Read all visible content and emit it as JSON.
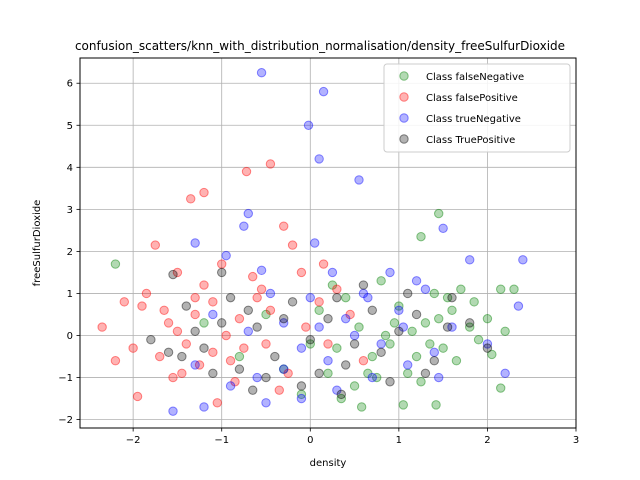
{
  "chart_data": {
    "type": "scatter",
    "title": "confusion_scatters/knn_with_distribution_normalisation/density_freeSulfurDioxide",
    "xlabel": "density",
    "ylabel": "freeSulfurDioxide",
    "xlim": [
      -2.6,
      3.0
    ],
    "ylim": [
      -2.2,
      6.6
    ],
    "xticks": [
      -2,
      -1,
      0,
      1,
      2,
      3
    ],
    "yticks": [
      -2,
      -1,
      0,
      1,
      2,
      3,
      4,
      5,
      6
    ],
    "grid": true,
    "legend_position": "top-right",
    "series": [
      {
        "name": "Class falseNegative",
        "color": "#008000",
        "points": [
          [
            -2.2,
            1.7
          ],
          [
            1.45,
            2.9
          ],
          [
            1.25,
            2.35
          ],
          [
            2.15,
            1.1
          ],
          [
            2.3,
            1.1
          ],
          [
            2.2,
            0.1
          ],
          [
            2.05,
            -0.45
          ],
          [
            2.15,
            -1.25
          ],
          [
            1.05,
            -1.65
          ],
          [
            1.42,
            -1.65
          ],
          [
            0.58,
            -1.7
          ],
          [
            0.3,
            -0.3
          ],
          [
            0.7,
            -0.5
          ],
          [
            0.9,
            -0.2
          ],
          [
            1.1,
            -0.9
          ],
          [
            1.3,
            0.3
          ],
          [
            1.5,
            -0.3
          ],
          [
            1.6,
            0.6
          ],
          [
            1.8,
            0.2
          ],
          [
            1.9,
            -0.1
          ],
          [
            0.1,
            0.6
          ],
          [
            0.2,
            -0.9
          ],
          [
            0.4,
            0.9
          ],
          [
            0.5,
            -1.2
          ],
          [
            0.8,
            1.3
          ],
          [
            1.0,
            0.7
          ],
          [
            1.2,
            -0.5
          ],
          [
            1.4,
            1.0
          ],
          [
            1.7,
            1.1
          ],
          [
            2.0,
            0.4
          ],
          [
            0.55,
            0.2
          ],
          [
            0.75,
            -1.0
          ],
          [
            1.15,
            0.1
          ],
          [
            1.35,
            -0.2
          ],
          [
            1.55,
            0.9
          ],
          [
            -0.3,
            -0.8
          ],
          [
            -0.5,
            0.5
          ],
          [
            -0.1,
            -1.4
          ],
          [
            0.0,
            -0.2
          ],
          [
            0.25,
            1.2
          ],
          [
            0.65,
            -0.9
          ],
          [
            0.95,
            0.3
          ],
          [
            1.25,
            -1.1
          ],
          [
            1.65,
            -0.6
          ],
          [
            1.85,
            0.8
          ],
          [
            -0.8,
            -0.5
          ],
          [
            -1.2,
            0.3
          ],
          [
            0.35,
            -1.5
          ],
          [
            0.85,
            0.0
          ],
          [
            1.45,
            0.4
          ]
        ]
      },
      {
        "name": "Class falsePositive",
        "color": "#ff0000",
        "points": [
          [
            -1.2,
            3.4
          ],
          [
            -1.35,
            3.25
          ],
          [
            -0.72,
            3.9
          ],
          [
            -0.45,
            4.08
          ],
          [
            -1.0,
            1.7
          ],
          [
            -1.1,
            0.8
          ],
          [
            -1.45,
            -0.9
          ],
          [
            -1.3,
            0.5
          ],
          [
            -1.5,
            0.1
          ],
          [
            -1.7,
            -0.5
          ],
          [
            -1.9,
            0.7
          ],
          [
            -2.0,
            -0.3
          ],
          [
            -2.1,
            0.8
          ],
          [
            -2.2,
            -0.6
          ],
          [
            -2.35,
            0.2
          ],
          [
            -1.6,
            0.3
          ],
          [
            -1.4,
            -0.2
          ],
          [
            -1.2,
            1.2
          ],
          [
            -0.9,
            -0.6
          ],
          [
            -0.6,
            0.9
          ],
          [
            -0.3,
            2.6
          ],
          [
            -0.2,
            2.15
          ],
          [
            -0.1,
            1.5
          ],
          [
            0.1,
            0.8
          ],
          [
            0.2,
            -0.2
          ],
          [
            0.3,
            1.1
          ],
          [
            -0.5,
            -0.2
          ],
          [
            -0.8,
            0.4
          ],
          [
            -1.1,
            -0.4
          ],
          [
            -1.3,
            0.9
          ],
          [
            -1.55,
            -1.0
          ],
          [
            -1.75,
            2.15
          ],
          [
            -1.85,
            1.0
          ],
          [
            -1.95,
            -1.45
          ],
          [
            -1.05,
            -1.6
          ],
          [
            -0.85,
            -1.1
          ],
          [
            -0.65,
            1.4
          ],
          [
            -0.45,
            0.6
          ],
          [
            -0.25,
            -0.9
          ],
          [
            -0.05,
            0.2
          ],
          [
            0.15,
            1.7
          ],
          [
            0.45,
            0.5
          ],
          [
            0.6,
            -0.6
          ],
          [
            -1.5,
            1.5
          ],
          [
            -1.25,
            -0.7
          ],
          [
            -0.95,
            0.0
          ],
          [
            -0.75,
            -0.3
          ],
          [
            -0.55,
            1.1
          ],
          [
            -0.35,
            -1.3
          ],
          [
            -1.65,
            0.6
          ]
        ]
      },
      {
        "name": "Class trueNegative",
        "color": "#0000ff",
        "points": [
          [
            -0.55,
            6.25
          ],
          [
            0.15,
            5.8
          ],
          [
            -0.02,
            5.0
          ],
          [
            0.1,
            4.2
          ],
          [
            0.55,
            3.7
          ],
          [
            -0.7,
            2.9
          ],
          [
            -0.75,
            2.6
          ],
          [
            -1.3,
            2.2
          ],
          [
            -0.95,
            1.9
          ],
          [
            -0.55,
            1.55
          ],
          [
            -0.45,
            1.0
          ],
          [
            -0.3,
            0.3
          ],
          [
            -0.1,
            -0.3
          ],
          [
            0.0,
            0.9
          ],
          [
            0.2,
            -0.6
          ],
          [
            0.4,
            0.4
          ],
          [
            0.6,
            1.0
          ],
          [
            0.8,
            -0.2
          ],
          [
            1.0,
            0.6
          ],
          [
            1.2,
            1.3
          ],
          [
            1.4,
            -0.4
          ],
          [
            1.6,
            0.2
          ],
          [
            1.8,
            1.8
          ],
          [
            2.0,
            -0.2
          ],
          [
            2.2,
            -0.9
          ],
          [
            2.35,
            0.7
          ],
          [
            2.4,
            1.8
          ],
          [
            1.5,
            2.55
          ],
          [
            1.3,
            1.1
          ],
          [
            1.1,
            -0.7
          ],
          [
            0.9,
            1.5
          ],
          [
            0.7,
            -1.0
          ],
          [
            0.5,
            0.0
          ],
          [
            0.3,
            -1.3
          ],
          [
            0.1,
            0.2
          ],
          [
            -0.1,
            -1.5
          ],
          [
            -0.3,
            -0.8
          ],
          [
            -0.5,
            -1.6
          ],
          [
            -0.7,
            0.1
          ],
          [
            -0.9,
            -1.2
          ],
          [
            -1.1,
            0.5
          ],
          [
            -1.3,
            -0.7
          ],
          [
            -1.55,
            -1.8
          ],
          [
            -1.2,
            -1.7
          ],
          [
            -0.6,
            -1.0
          ],
          [
            0.05,
            2.2
          ],
          [
            0.25,
            1.5
          ],
          [
            0.65,
            0.9
          ],
          [
            1.05,
            0.2
          ],
          [
            1.45,
            -1.0
          ]
        ]
      },
      {
        "name": "Class TruePositive",
        "color": "#000000",
        "points": [
          [
            -1.55,
            1.45
          ],
          [
            -1.0,
            1.5
          ],
          [
            -0.9,
            0.9
          ],
          [
            -1.4,
            0.7
          ],
          [
            -1.8,
            -0.1
          ],
          [
            -1.6,
            -0.4
          ],
          [
            -1.2,
            -0.3
          ],
          [
            -1.0,
            0.3
          ],
          [
            -0.8,
            -0.8
          ],
          [
            -0.6,
            0.2
          ],
          [
            -0.4,
            -0.5
          ],
          [
            -0.2,
            0.8
          ],
          [
            0.0,
            -0.1
          ],
          [
            0.2,
            0.4
          ],
          [
            0.4,
            -0.7
          ],
          [
            0.6,
            1.2
          ],
          [
            0.8,
            -0.4
          ],
          [
            1.0,
            0.1
          ],
          [
            1.2,
            0.5
          ],
          [
            1.4,
            -0.6
          ],
          [
            1.6,
            0.9
          ],
          [
            1.8,
            0.3
          ],
          [
            2.0,
            -0.3
          ],
          [
            1.3,
            -0.9
          ],
          [
            1.1,
            1.0
          ],
          [
            0.9,
            -1.1
          ],
          [
            0.7,
            0.6
          ],
          [
            0.5,
            -0.2
          ],
          [
            0.3,
            0.9
          ],
          [
            0.1,
            -0.9
          ],
          [
            -0.1,
            -1.2
          ],
          [
            -0.3,
            0.4
          ],
          [
            -0.5,
            -1.0
          ],
          [
            -0.7,
            0.6
          ],
          [
            -1.1,
            -0.9
          ],
          [
            -1.3,
            0.1
          ],
          [
            -1.45,
            -0.5
          ],
          [
            -0.65,
            -1.3
          ],
          [
            0.35,
            -1.4
          ],
          [
            1.55,
            0.2
          ]
        ]
      }
    ]
  }
}
